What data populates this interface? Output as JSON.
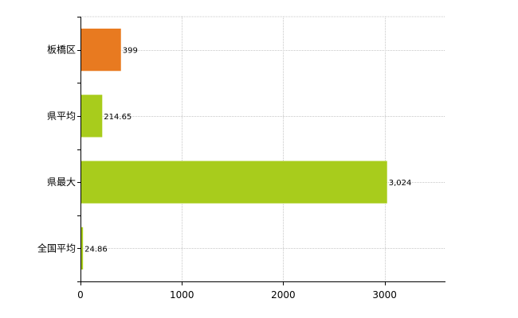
{
  "chart_data": {
    "type": "bar",
    "orientation": "horizontal",
    "categories": [
      "板橋区",
      "県平均",
      "県最大",
      "全国平均"
    ],
    "values": [
      399,
      214.65,
      3024,
      24.86
    ],
    "value_labels": [
      "399",
      "214.65",
      "3,024",
      "24.86"
    ],
    "bar_colors": [
      "#e87a20",
      "#a8cc1c",
      "#a8cc1c",
      "#a8cc1c"
    ],
    "xticks": [
      0,
      1000,
      2000,
      3000
    ],
    "xtick_labels": [
      "0",
      "1000",
      "2000",
      "3000"
    ],
    "xlim": [
      0,
      3600
    ],
    "grid": true,
    "title": "",
    "xlabel": "",
    "ylabel": ""
  }
}
